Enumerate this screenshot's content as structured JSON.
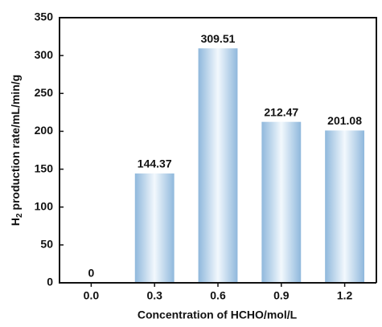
{
  "chart_data": {
    "type": "bar",
    "x_label": "Concentration of HCHO/mol/L",
    "y_label_parts": [
      "H",
      "2",
      " production rate/mL/min/g"
    ],
    "categories": [
      "0.0",
      "0.3",
      "0.6",
      "0.9",
      "1.2"
    ],
    "values": [
      0,
      144.37,
      309.51,
      212.47,
      201.08
    ],
    "value_labels": [
      "0",
      "144.37",
      "309.51",
      "212.47",
      "201.08"
    ],
    "color": "#8fb8dc",
    "ylim": [
      0,
      350
    ],
    "yticks": [
      0,
      50,
      100,
      150,
      200,
      250,
      300,
      350
    ],
    "grid": false
  }
}
